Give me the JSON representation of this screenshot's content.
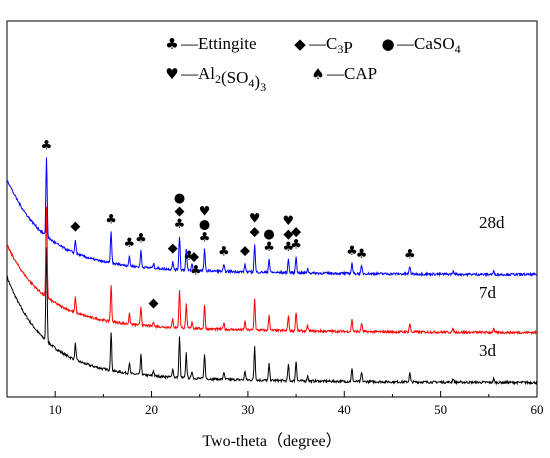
{
  "chart_data": {
    "type": "line",
    "xlabel": "Two-theta（degree）",
    "ylabel": "",
    "xlim": [
      5,
      60
    ],
    "xticks": [
      10,
      20,
      30,
      40,
      50,
      60
    ],
    "grid": false,
    "legend": {
      "placement": "top-center",
      "entries": [
        {
          "symbol": "club",
          "glyph": "♣",
          "label_parts": [
            [
              "—Ettingite",
              ""
            ]
          ]
        },
        {
          "symbol": "diamond",
          "glyph": "◆",
          "label_parts": [
            [
              "—C",
              ""
            ],
            [
              "3",
              "sub"
            ],
            [
              "P",
              ""
            ]
          ]
        },
        {
          "symbol": "circle",
          "glyph": "●",
          "label_parts": [
            [
              "—CaSO",
              ""
            ],
            [
              "4",
              "sub"
            ]
          ]
        },
        {
          "symbol": "heart",
          "glyph": "♥",
          "label_parts": [
            [
              "—Al",
              ""
            ],
            [
              "2",
              "sub"
            ],
            [
              "(SO",
              ""
            ],
            [
              "4",
              "sub"
            ],
            [
              ")",
              ""
            ],
            [
              "3",
              "sub"
            ]
          ]
        },
        {
          "symbol": "spade",
          "glyph": "♠",
          "label_parts": [
            [
              "—CAP",
              ""
            ]
          ]
        }
      ]
    },
    "peaks": [
      {
        "x": 9.1,
        "h": 105
      },
      {
        "x": 12.1,
        "h": 18
      },
      {
        "x": 15.8,
        "h": 42
      },
      {
        "x": 17.7,
        "h": 12
      },
      {
        "x": 18.9,
        "h": 22
      },
      {
        "x": 20.2,
        "h": 6
      },
      {
        "x": 22.2,
        "h": 10
      },
      {
        "x": 22.9,
        "h": 45
      },
      {
        "x": 23.6,
        "h": 28
      },
      {
        "x": 24.2,
        "h": 8
      },
      {
        "x": 25.5,
        "h": 28
      },
      {
        "x": 27.5,
        "h": 8
      },
      {
        "x": 29.7,
        "h": 10
      },
      {
        "x": 30.7,
        "h": 38
      },
      {
        "x": 32.2,
        "h": 18
      },
      {
        "x": 34.2,
        "h": 18
      },
      {
        "x": 35.0,
        "h": 22
      },
      {
        "x": 36.2,
        "h": 6
      },
      {
        "x": 40.8,
        "h": 14
      },
      {
        "x": 41.8,
        "h": 10
      },
      {
        "x": 46.8,
        "h": 10
      },
      {
        "x": 51.3,
        "h": 4
      },
      {
        "x": 55.5,
        "h": 4
      }
    ],
    "series": [
      {
        "name": "3d",
        "color": "#000000",
        "baseline": 14,
        "base_amp": 92
      },
      {
        "name": "7d",
        "color": "#ff0000",
        "baseline": 64,
        "base_amp": 74
      },
      {
        "name": "28d",
        "color": "#0000ff",
        "baseline": 122,
        "base_amp": 82
      }
    ],
    "annotations": [
      {
        "glyph": "♣",
        "x": 9.1,
        "y_above": 4
      },
      {
        "glyph": "◆",
        "x": 12.1,
        "y_above": 6
      },
      {
        "glyph": "♣",
        "x": 15.8,
        "y_above": 4
      },
      {
        "glyph": "♣",
        "x": 17.7,
        "y_above": 6
      },
      {
        "glyph": "♣",
        "x": 18.9,
        "y_above": 4
      },
      {
        "glyph": "◆",
        "x": 22.2,
        "y_above": 6
      },
      {
        "glyph": "♣",
        "x": 22.9,
        "y_above": 4
      },
      {
        "glyph": "◆",
        "x": 22.9,
        "y_above": 17
      },
      {
        "glyph": "●",
        "x": 22.9,
        "y_above": 30
      },
      {
        "glyph": "♣",
        "x": 23.9,
        "y_above": 6
      },
      {
        "glyph": "◆",
        "x": 24.4,
        "y_above": 6
      },
      {
        "glyph": "♣",
        "x": 24.6,
        "y_above": -8
      },
      {
        "glyph": "♣",
        "x": 25.5,
        "y_above": 4
      },
      {
        "glyph": "●",
        "x": 25.5,
        "y_above": 17
      },
      {
        "glyph": "♥",
        "x": 25.5,
        "y_above": 30
      },
      {
        "glyph": "♣",
        "x": 27.5,
        "y_above": 6
      },
      {
        "glyph": "◆",
        "x": 29.7,
        "y_above": 6
      },
      {
        "glyph": "◆",
        "x": 30.7,
        "y_above": 4
      },
      {
        "glyph": "♥",
        "x": 30.7,
        "y_above": 17
      },
      {
        "glyph": "♣",
        "x": 32.2,
        "y_above": 4
      },
      {
        "glyph": "●",
        "x": 32.2,
        "y_above": 17
      },
      {
        "glyph": "♣",
        "x": 34.2,
        "y_above": 4
      },
      {
        "glyph": "◆",
        "x": 34.2,
        "y_above": 17
      },
      {
        "glyph": "♥",
        "x": 34.2,
        "y_above": 30
      },
      {
        "glyph": "♣",
        "x": 35.0,
        "y_above": 4
      },
      {
        "glyph": "◆",
        "x": 35.0,
        "y_above": 17
      },
      {
        "glyph": "♣",
        "x": 40.8,
        "y_above": 4
      },
      {
        "glyph": "♣",
        "x": 41.8,
        "y_above": 4
      },
      {
        "glyph": "♣",
        "x": 46.8,
        "y_above": 4
      }
    ],
    "extra_annotation": {
      "glyph": "◆",
      "x": 20.2,
      "series": "7d",
      "y_above": 6
    }
  }
}
